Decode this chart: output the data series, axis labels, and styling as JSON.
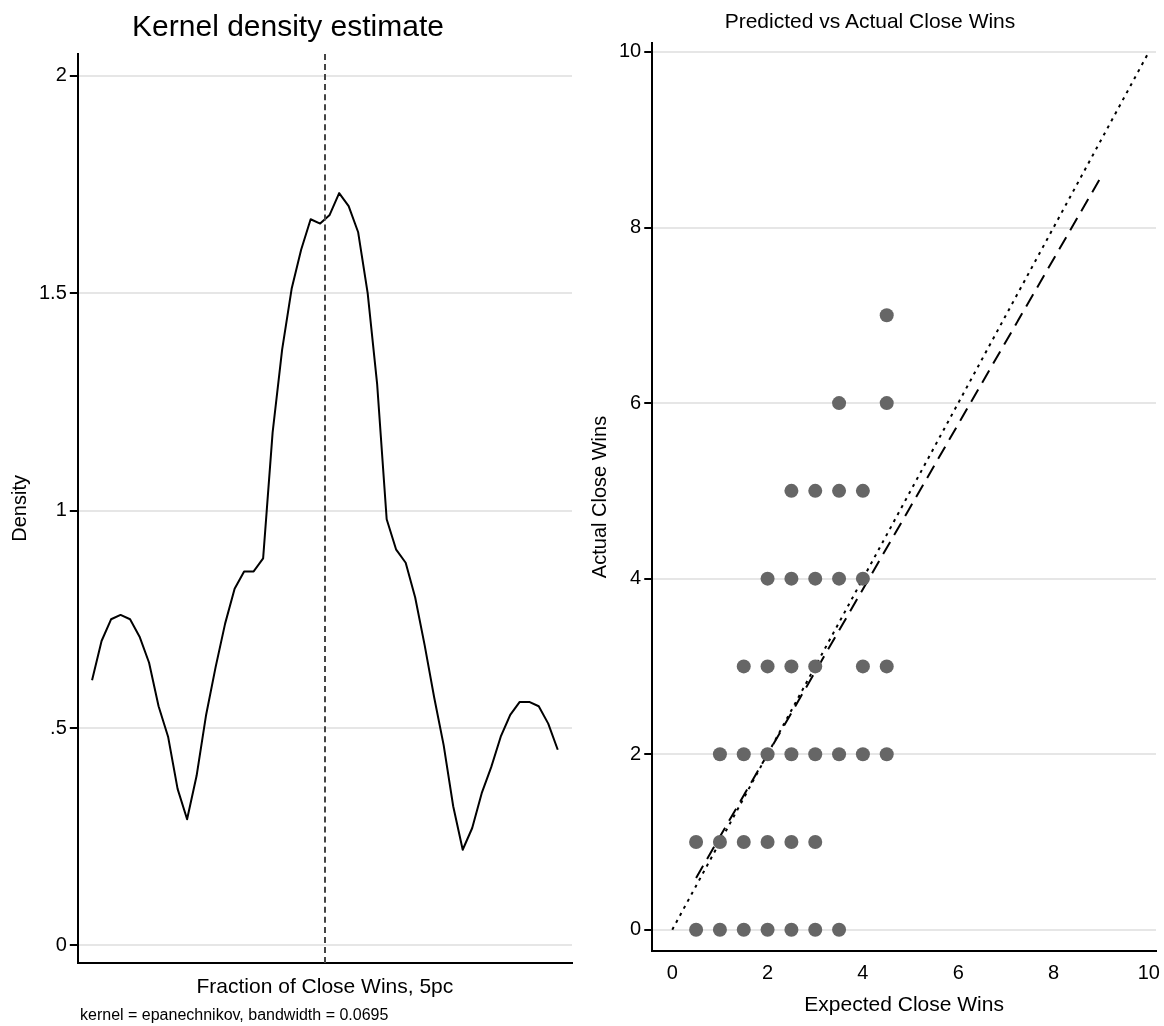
{
  "chart_data": [
    {
      "type": "line",
      "title": "Kernel density estimate",
      "xlabel": "Fraction of Close Wins, 5pc",
      "ylabel": "Density",
      "annotations": [
        "kernel = epanechnikov, bandwidth = 0.0695"
      ],
      "categories": [
        null,
        null,
        null,
        null,
        null,
        null,
        null,
        null,
        null,
        null,
        null,
        null,
        null,
        null,
        null,
        null,
        null,
        null,
        null,
        null,
        null,
        null,
        null,
        null,
        null,
        null,
        null,
        null,
        null,
        null,
        null,
        null,
        null,
        null,
        null,
        null,
        null,
        null,
        null,
        null,
        null,
        null,
        null,
        null,
        null,
        null,
        null,
        null,
        null,
        null
      ],
      "series": [
        {
          "color": "#000000",
          "values": [
            0.61,
            0.7,
            0.75,
            0.76,
            0.75,
            0.71,
            0.65,
            0.55,
            0.48,
            0.36,
            0.29,
            0.39,
            0.53,
            0.64,
            0.74,
            0.82,
            0.86,
            0.86,
            0.89,
            1.18,
            1.37,
            1.51,
            1.6,
            1.67,
            1.66,
            1.68,
            1.73,
            1.7,
            1.64,
            1.5,
            1.29,
            0.98,
            0.91,
            0.88,
            0.8,
            0.69,
            0.57,
            0.46,
            0.32,
            0.22,
            0.27,
            0.35,
            0.41,
            0.48,
            0.53,
            0.56,
            0.56,
            0.55,
            0.51,
            0.45
          ]
        }
      ],
      "ylim": [
        -0.04,
        2.05
      ],
      "yticks": [
        0,
        {
          "value": 0.5,
          "label": ".5"
        },
        1,
        1.5,
        2
      ],
      "grid": "y",
      "legend": false,
      "tick_labels": "y",
      "marker": "none",
      "line_style": "solid"
    },
    {
      "type": "scatter",
      "title": "Predicted vs Actual Close Wins",
      "xlabel": "Expected Close Wins",
      "ylabel": "Actual Close Wins",
      "series": [
        {
          "type": "scatter",
          "color": "#666666",
          "marker": "circle",
          "x": [
            0.5,
            1,
            1.5,
            2,
            2.5,
            3,
            3.5,
            0.5,
            1,
            1.5,
            2,
            2.5,
            3,
            1,
            1.5,
            2,
            2.5,
            3,
            3.5,
            4,
            4.5,
            1.5,
            2,
            2.5,
            3,
            4,
            4.5,
            2,
            2.5,
            3,
            3.5,
            4,
            2.5,
            3,
            3.5,
            4,
            3.5,
            4.5,
            4.5
          ],
          "values": [
            0,
            0,
            0,
            0,
            0,
            0,
            0,
            1,
            1,
            1,
            1,
            1,
            1,
            2,
            2,
            2,
            2,
            2,
            2,
            2,
            2,
            3,
            3,
            3,
            3,
            3,
            3,
            4,
            4,
            4,
            4,
            4,
            5,
            5,
            5,
            5,
            6,
            6,
            7
          ]
        },
        {
          "type": "line",
          "color": "#000000",
          "marker": "none",
          "line_style": "dotted",
          "x": [
            0,
            10
          ],
          "values": [
            0,
            10
          ]
        },
        {
          "type": "line",
          "color": "#000000",
          "marker": "none",
          "line_style": "dashed",
          "x": [
            0.5,
            9
          ],
          "values": [
            0.59,
            8.58
          ]
        }
      ],
      "xlim": [
        -0.42,
        10.15
      ],
      "xticks": [
        0,
        2,
        4,
        6,
        8,
        10
      ],
      "ylim": [
        -0.24,
        10.1
      ],
      "yticks": [
        0,
        2,
        4,
        6,
        8,
        10
      ],
      "grid": "y",
      "legend": false
    }
  ]
}
